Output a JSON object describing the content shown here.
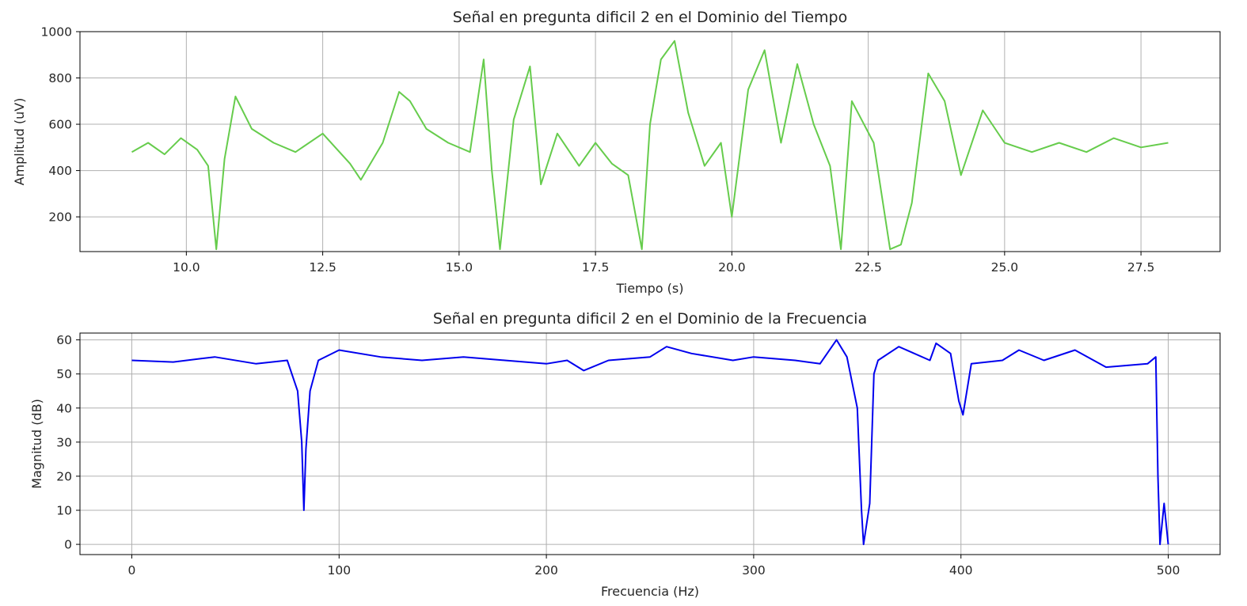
{
  "chart_data": [
    {
      "type": "line",
      "title": "Señal en pregunta dificil 2 en el Dominio del Tiempo",
      "xlabel": "Tiempo (s)",
      "ylabel": "Amplitud (uV)",
      "xlim": [
        8.05,
        28.95
      ],
      "ylim": [
        50,
        1000
      ],
      "xticks": [
        "10.0",
        "12.5",
        "15.0",
        "17.5",
        "20.0",
        "22.5",
        "25.0",
        "27.5"
      ],
      "yticks": [
        "200",
        "400",
        "600",
        "800",
        "1000"
      ],
      "grid": true,
      "color": "#66cc4c",
      "series": [
        {
          "x": [
            9.0,
            9.3,
            9.6,
            9.9,
            10.2,
            10.4,
            10.55,
            10.7,
            10.9,
            11.2,
            11.6,
            12.0,
            12.5,
            13.0,
            13.2,
            13.6,
            13.9,
            14.1,
            14.4,
            14.8,
            15.2,
            15.45,
            15.6,
            15.75,
            16.0,
            16.3,
            16.5,
            16.8,
            17.2,
            17.5,
            17.8,
            18.1,
            18.35,
            18.5,
            18.7,
            18.95,
            19.2,
            19.5,
            19.8,
            20.0,
            20.3,
            20.6,
            20.9,
            21.2,
            21.5,
            21.8,
            22.0,
            22.2,
            22.6,
            22.9,
            23.1,
            23.3,
            23.6,
            23.9,
            24.2,
            24.6,
            25.0,
            25.5,
            26.0,
            26.5,
            27.0,
            27.5,
            28.0
          ],
          "y": [
            480,
            520,
            470,
            540,
            490,
            420,
            60,
            450,
            720,
            580,
            520,
            480,
            560,
            430,
            360,
            520,
            740,
            700,
            580,
            520,
            480,
            880,
            400,
            60,
            620,
            850,
            340,
            560,
            420,
            520,
            430,
            380,
            60,
            600,
            880,
            960,
            650,
            420,
            520,
            200,
            750,
            920,
            520,
            860,
            600,
            420,
            60,
            700,
            520,
            60,
            80,
            260,
            820,
            700,
            380,
            660,
            520,
            480,
            520,
            480,
            540,
            500,
            520
          ]
        }
      ]
    },
    {
      "type": "line",
      "title": "Señal en pregunta dificil 2 en el Dominio de la Frecuencia",
      "xlabel": "Frecuencia (Hz)",
      "ylabel": "Magnitud (dB)",
      "xlim": [
        -25,
        525
      ],
      "ylim": [
        -3,
        62
      ],
      "xticks": [
        "0",
        "100",
        "200",
        "300",
        "400",
        "500"
      ],
      "yticks": [
        "0",
        "10",
        "20",
        "30",
        "40",
        "50",
        "60"
      ],
      "grid": true,
      "color": "#0000ee",
      "series": [
        {
          "x": [
            0,
            20,
            40,
            60,
            75,
            80,
            82,
            83,
            84,
            86,
            90,
            100,
            120,
            140,
            160,
            180,
            200,
            210,
            218,
            230,
            250,
            258,
            270,
            290,
            300,
            320,
            332,
            340,
            345,
            350,
            352,
            353,
            356,
            358,
            360,
            370,
            385,
            388,
            395,
            399,
            401,
            405,
            420,
            428,
            440,
            455,
            470,
            490,
            494,
            495,
            496,
            498,
            500
          ],
          "y": [
            54,
            53.5,
            55,
            53,
            54,
            45,
            30,
            10,
            28,
            45,
            54,
            57,
            55,
            54,
            55,
            54,
            53,
            54,
            51,
            54,
            55,
            58,
            56,
            54,
            55,
            54,
            53,
            60,
            55,
            40,
            10,
            0,
            12,
            50,
            54,
            58,
            54,
            59,
            56,
            42,
            38,
            53,
            54,
            57,
            54,
            57,
            52,
            53,
            55,
            20,
            0,
            12,
            0
          ]
        }
      ]
    }
  ]
}
